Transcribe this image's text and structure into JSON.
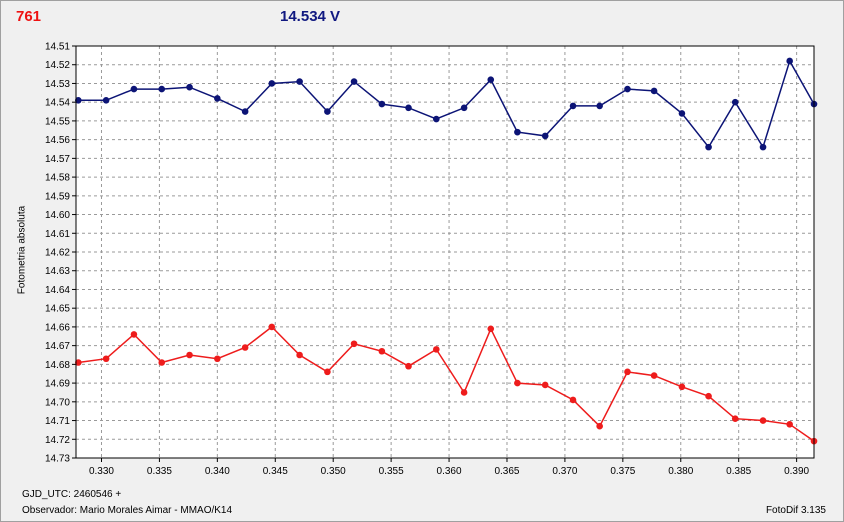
{
  "header": {
    "star_id": "761",
    "magnitude": "14.534 V"
  },
  "footer": {
    "gjd": "GJD_UTC: 2460546 +",
    "observer": "Observador: Mario Morales Aimar - MMAO/K14",
    "version": "FotoDif 3.135"
  },
  "colors": {
    "series_blue": "#0c1476",
    "series_red": "#ee1c1c",
    "grid": "#9a9a9a",
    "plot_bg": "#ffffff"
  },
  "chart_data": {
    "type": "line",
    "ylabel": "Fotometria absoluta",
    "xlabel": "",
    "xlim": [
      0.3278,
      0.3915
    ],
    "ylim": [
      14.73,
      14.51
    ],
    "y_inverted": true,
    "grid": true,
    "x_ticks": [
      "0.330",
      "0.335",
      "0.340",
      "0.345",
      "0.350",
      "0.355",
      "0.360",
      "0.365",
      "0.370",
      "0.375",
      "0.380",
      "0.385",
      "0.390"
    ],
    "y_ticks": [
      "14.51",
      "14.52",
      "14.53",
      "14.54",
      "14.55",
      "14.56",
      "14.57",
      "14.58",
      "14.59",
      "14.60",
      "14.61",
      "14.62",
      "14.63",
      "14.64",
      "14.65",
      "14.66",
      "14.67",
      "14.68",
      "14.69",
      "14.70",
      "14.71",
      "14.72",
      "14.73"
    ],
    "series": [
      {
        "color": "#0c1476",
        "points": [
          [
            0.328,
            14.539
          ],
          [
            0.3304,
            14.539
          ],
          [
            0.3328,
            14.533
          ],
          [
            0.3352,
            14.533
          ],
          [
            0.3376,
            14.532
          ],
          [
            0.34,
            14.538
          ],
          [
            0.3424,
            14.545
          ],
          [
            0.3447,
            14.53
          ],
          [
            0.3471,
            14.529
          ],
          [
            0.3495,
            14.545
          ],
          [
            0.3518,
            14.529
          ],
          [
            0.3542,
            14.541
          ],
          [
            0.3565,
            14.543
          ],
          [
            0.3589,
            14.549
          ],
          [
            0.3613,
            14.543
          ],
          [
            0.3636,
            14.528
          ],
          [
            0.3659,
            14.556
          ],
          [
            0.3683,
            14.558
          ],
          [
            0.3707,
            14.542
          ],
          [
            0.373,
            14.542
          ],
          [
            0.3754,
            14.533
          ],
          [
            0.3777,
            14.534
          ],
          [
            0.3801,
            14.546
          ],
          [
            0.3824,
            14.564
          ],
          [
            0.3847,
            14.54
          ],
          [
            0.3871,
            14.564
          ],
          [
            0.3894,
            14.518
          ],
          [
            0.3915,
            14.541
          ]
        ]
      },
      {
        "color": "#ee1c1c",
        "points": [
          [
            0.328,
            14.679
          ],
          [
            0.3304,
            14.677
          ],
          [
            0.3328,
            14.664
          ],
          [
            0.3352,
            14.679
          ],
          [
            0.3376,
            14.675
          ],
          [
            0.34,
            14.677
          ],
          [
            0.3424,
            14.671
          ],
          [
            0.3447,
            14.66
          ],
          [
            0.3471,
            14.675
          ],
          [
            0.3495,
            14.684
          ],
          [
            0.3518,
            14.669
          ],
          [
            0.3542,
            14.673
          ],
          [
            0.3565,
            14.681
          ],
          [
            0.3589,
            14.672
          ],
          [
            0.3613,
            14.695
          ],
          [
            0.3636,
            14.661
          ],
          [
            0.3659,
            14.69
          ],
          [
            0.3683,
            14.691
          ],
          [
            0.3707,
            14.699
          ],
          [
            0.373,
            14.713
          ],
          [
            0.3754,
            14.684
          ],
          [
            0.3777,
            14.686
          ],
          [
            0.3801,
            14.692
          ],
          [
            0.3824,
            14.697
          ],
          [
            0.3847,
            14.709
          ],
          [
            0.3871,
            14.71
          ],
          [
            0.3894,
            14.712
          ],
          [
            0.3915,
            14.721
          ]
        ]
      }
    ]
  }
}
